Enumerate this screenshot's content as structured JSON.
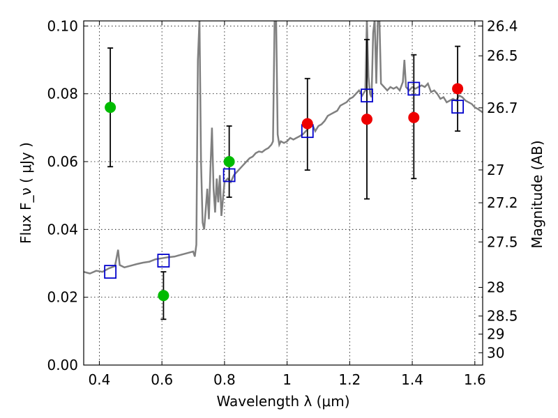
{
  "chart_data": {
    "type": "scatter",
    "xlabel": "Wavelength  λ (μm)",
    "ylabel": "Flux  F_ν  ( μJy )",
    "ylabel_right": "Magnitude (AB)",
    "xlim": [
      0.35,
      1.625
    ],
    "ylim": [
      0.0,
      0.1015
    ],
    "grid": true,
    "x_ticks": [
      0.4,
      0.6,
      0.8,
      1.0,
      1.2,
      1.4,
      1.6
    ],
    "x_tick_labels": [
      "0.4",
      "0.6",
      "0.8",
      "1",
      "1.2",
      "1.4",
      "1.6"
    ],
    "y_ticks": [
      0.0,
      0.02,
      0.04,
      0.06,
      0.08,
      0.1
    ],
    "y_tick_labels": [
      "0.00",
      "0.02",
      "0.04",
      "0.06",
      "0.08",
      "0.10"
    ],
    "right_ticks": [
      {
        "label": "26.4",
        "mag": 26.4
      },
      {
        "label": "26.5",
        "mag": 26.5
      },
      {
        "label": "26.7",
        "mag": 26.7
      },
      {
        "label": "27",
        "mag": 27.0
      },
      {
        "label": "27.2",
        "mag": 27.2
      },
      {
        "label": "27.5",
        "mag": 27.5
      },
      {
        "label": "28",
        "mag": 28.0
      },
      {
        "label": "28.5",
        "mag": 28.5
      },
      {
        "label": "29",
        "mag": 29.0
      },
      {
        "label": "30",
        "mag": 30.0
      }
    ],
    "series": [
      {
        "kind": "line",
        "color": "#808080",
        "points": [
          [
            0.35,
            0.0275
          ],
          [
            0.37,
            0.027
          ],
          [
            0.39,
            0.0278
          ],
          [
            0.41,
            0.0275
          ],
          [
            0.43,
            0.0285
          ],
          [
            0.45,
            0.0292
          ],
          [
            0.46,
            0.034
          ],
          [
            0.465,
            0.0295
          ],
          [
            0.48,
            0.0288
          ],
          [
            0.5,
            0.0293
          ],
          [
            0.52,
            0.0298
          ],
          [
            0.54,
            0.0302
          ],
          [
            0.56,
            0.0305
          ],
          [
            0.58,
            0.0312
          ],
          [
            0.6,
            0.0315
          ],
          [
            0.62,
            0.0318
          ],
          [
            0.64,
            0.032
          ],
          [
            0.66,
            0.0325
          ],
          [
            0.68,
            0.033
          ],
          [
            0.7,
            0.0335
          ],
          [
            0.705,
            0.032
          ],
          [
            0.71,
            0.0355
          ],
          [
            0.715,
            0.09
          ],
          [
            0.72,
            0.102
          ],
          [
            0.725,
            0.06
          ],
          [
            0.73,
            0.042
          ],
          [
            0.735,
            0.04
          ],
          [
            0.74,
            0.046
          ],
          [
            0.745,
            0.052
          ],
          [
            0.75,
            0.043
          ],
          [
            0.755,
            0.058
          ],
          [
            0.76,
            0.07
          ],
          [
            0.765,
            0.052
          ],
          [
            0.77,
            0.045
          ],
          [
            0.775,
            0.055
          ],
          [
            0.78,
            0.048
          ],
          [
            0.785,
            0.056
          ],
          [
            0.79,
            0.044
          ],
          [
            0.8,
            0.054
          ],
          [
            0.81,
            0.055
          ],
          [
            0.82,
            0.054
          ],
          [
            0.83,
            0.056
          ],
          [
            0.84,
            0.057
          ],
          [
            0.85,
            0.058
          ],
          [
            0.86,
            0.059
          ],
          [
            0.87,
            0.06
          ],
          [
            0.88,
            0.061
          ],
          [
            0.89,
            0.0615
          ],
          [
            0.9,
            0.0625
          ],
          [
            0.91,
            0.063
          ],
          [
            0.92,
            0.0628
          ],
          [
            0.93,
            0.0635
          ],
          [
            0.94,
            0.064
          ],
          [
            0.95,
            0.065
          ],
          [
            0.955,
            0.066
          ],
          [
            0.96,
            0.102
          ],
          [
            0.965,
            0.102
          ],
          [
            0.97,
            0.068
          ],
          [
            0.975,
            0.065
          ],
          [
            0.98,
            0.066
          ],
          [
            0.99,
            0.0655
          ],
          [
            1.0,
            0.066
          ],
          [
            1.01,
            0.067
          ],
          [
            1.02,
            0.0665
          ],
          [
            1.03,
            0.067
          ],
          [
            1.04,
            0.0675
          ],
          [
            1.05,
            0.068
          ],
          [
            1.06,
            0.069
          ],
          [
            1.07,
            0.07
          ],
          [
            1.08,
            0.071
          ],
          [
            1.09,
            0.069
          ],
          [
            1.1,
            0.0705
          ],
          [
            1.11,
            0.071
          ],
          [
            1.12,
            0.072
          ],
          [
            1.13,
            0.0735
          ],
          [
            1.14,
            0.074
          ],
          [
            1.15,
            0.0745
          ],
          [
            1.16,
            0.075
          ],
          [
            1.17,
            0.0765
          ],
          [
            1.18,
            0.077
          ],
          [
            1.19,
            0.0775
          ],
          [
            1.2,
            0.0785
          ],
          [
            1.21,
            0.079
          ],
          [
            1.22,
            0.08
          ],
          [
            1.23,
            0.081
          ],
          [
            1.24,
            0.0795
          ],
          [
            1.25,
            0.081
          ],
          [
            1.255,
            0.102
          ],
          [
            1.26,
            0.085
          ],
          [
            1.265,
            0.08
          ],
          [
            1.27,
            0.079
          ],
          [
            1.275,
            0.098
          ],
          [
            1.28,
            0.102
          ],
          [
            1.285,
            0.083
          ],
          [
            1.29,
            0.102
          ],
          [
            1.295,
            0.102
          ],
          [
            1.3,
            0.083
          ],
          [
            1.31,
            0.082
          ],
          [
            1.32,
            0.081
          ],
          [
            1.33,
            0.082
          ],
          [
            1.34,
            0.0815
          ],
          [
            1.35,
            0.082
          ],
          [
            1.36,
            0.081
          ],
          [
            1.37,
            0.0835
          ],
          [
            1.375,
            0.09
          ],
          [
            1.38,
            0.082
          ],
          [
            1.39,
            0.081
          ],
          [
            1.4,
            0.082
          ],
          [
            1.41,
            0.0815
          ],
          [
            1.42,
            0.082
          ],
          [
            1.43,
            0.0825
          ],
          [
            1.44,
            0.082
          ],
          [
            1.45,
            0.083
          ],
          [
            1.46,
            0.0805
          ],
          [
            1.47,
            0.081
          ],
          [
            1.48,
            0.08
          ],
          [
            1.49,
            0.0785
          ],
          [
            1.5,
            0.079
          ],
          [
            1.51,
            0.0775
          ],
          [
            1.52,
            0.078
          ],
          [
            1.53,
            0.0785
          ],
          [
            1.54,
            0.078
          ],
          [
            1.55,
            0.0795
          ],
          [
            1.56,
            0.079
          ],
          [
            1.57,
            0.078
          ],
          [
            1.58,
            0.0775
          ],
          [
            1.59,
            0.077
          ],
          [
            1.6,
            0.076
          ],
          [
            1.61,
            0.0755
          ],
          [
            1.625,
            0.0745
          ]
        ]
      },
      {
        "kind": "open-square",
        "color": "#0000cc",
        "points": [
          [
            0.435,
            0.0275
          ],
          [
            0.605,
            0.0308
          ],
          [
            0.815,
            0.056
          ],
          [
            1.065,
            0.069
          ],
          [
            1.255,
            0.0795
          ],
          [
            1.405,
            0.0815
          ],
          [
            1.545,
            0.0762
          ]
        ]
      },
      {
        "kind": "errorbar-point",
        "color": "#00bb00",
        "points": [
          {
            "x": 0.435,
            "y": 0.076,
            "lo": 0.0585,
            "hi": 0.0935
          },
          {
            "x": 0.605,
            "y": 0.0205,
            "lo": 0.0135,
            "hi": 0.0275
          },
          {
            "x": 0.815,
            "y": 0.06,
            "lo": 0.0495,
            "hi": 0.0705
          }
        ]
      },
      {
        "kind": "errorbar-point",
        "color": "#ee0000",
        "points": [
          {
            "x": 1.065,
            "y": 0.0712,
            "lo": 0.0575,
            "hi": 0.0845
          },
          {
            "x": 1.255,
            "y": 0.0725,
            "lo": 0.049,
            "hi": 0.096
          },
          {
            "x": 1.405,
            "y": 0.073,
            "lo": 0.055,
            "hi": 0.0915
          },
          {
            "x": 1.545,
            "y": 0.0815,
            "lo": 0.069,
            "hi": 0.094
          }
        ]
      }
    ]
  }
}
